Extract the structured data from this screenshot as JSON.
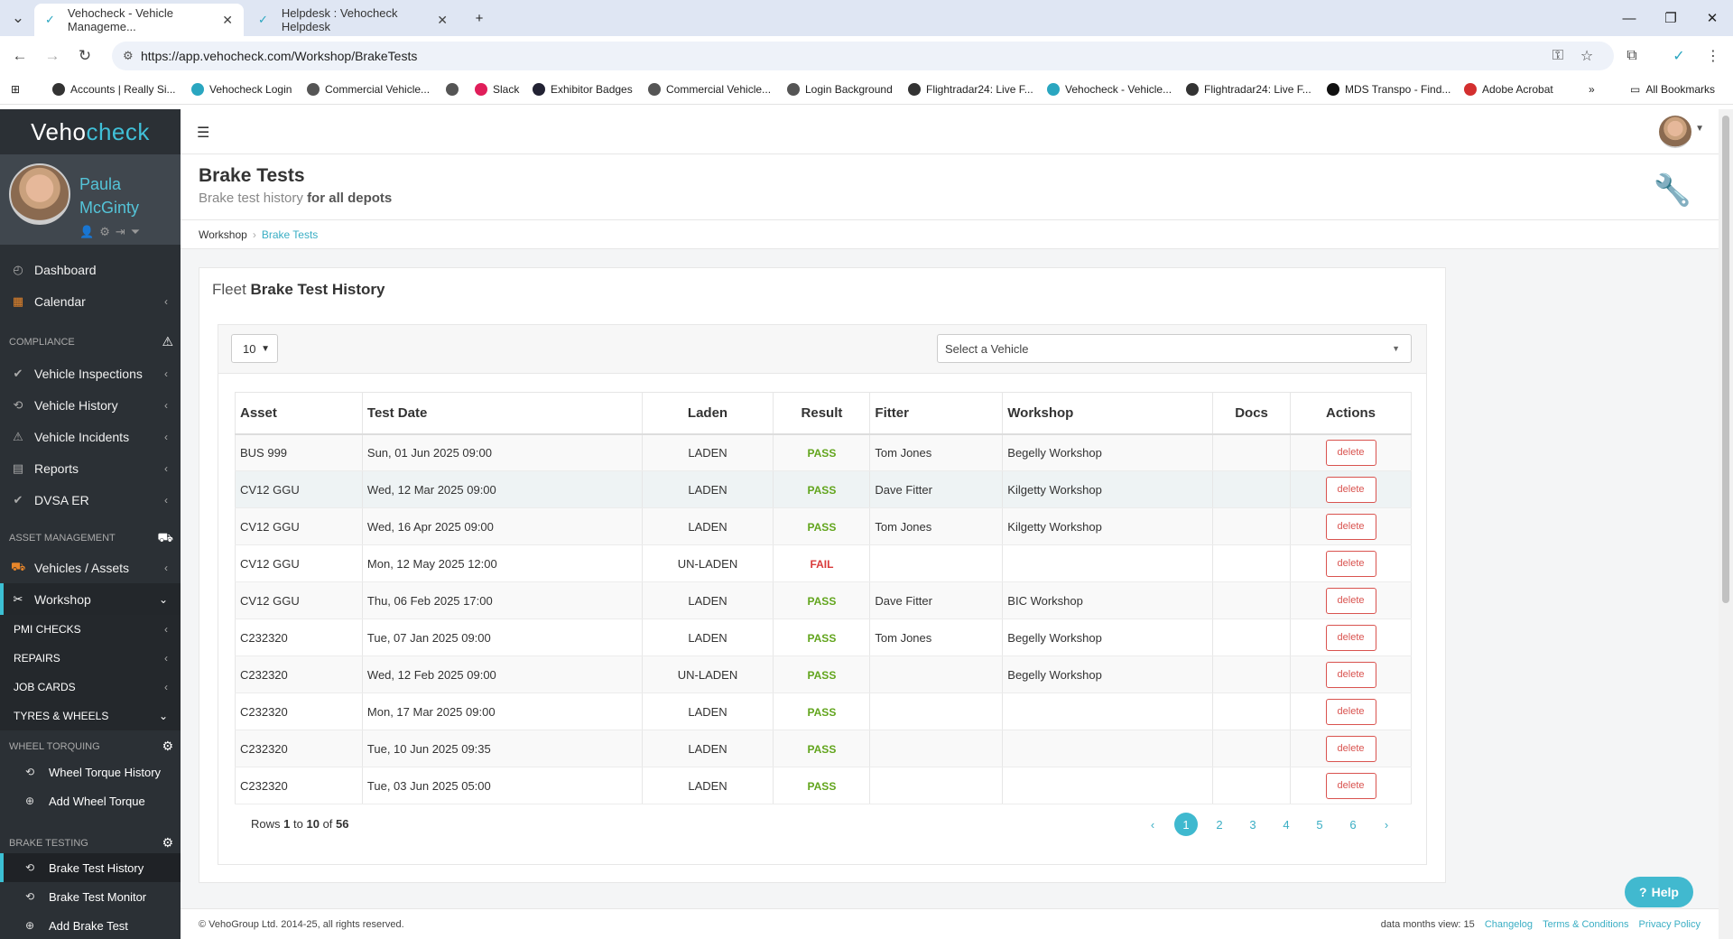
{
  "browser": {
    "tabs": [
      {
        "title": "Vehocheck - Vehicle Manageme..."
      },
      {
        "title": "Helpdesk : Vehocheck Helpdesk"
      }
    ],
    "url": "https://app.vehocheck.com/Workshop/BrakeTests",
    "bookmarks": [
      "Accounts | Really Si...",
      "Vehocheck Login",
      "Commercial Vehicle...",
      "Slack",
      "Exhibitor Badges",
      "Commercial Vehicle...",
      "Login Background",
      "Flightradar24: Live F...",
      "Vehocheck - Vehicle...",
      "Flightradar24: Live F...",
      "MDS Transpo - Find...",
      "Adobe Acrobat"
    ],
    "all_bookmarks": "All Bookmarks"
  },
  "sidebar": {
    "logo_prefix": "Veho",
    "logo_suffix": "check",
    "user_first": "Paula",
    "user_last": "McGinty",
    "dashboard": "Dashboard",
    "calendar": "Calendar",
    "compliance": "COMPLIANCE",
    "vehicle_inspections": "Vehicle Inspections",
    "vehicle_history": "Vehicle History",
    "vehicle_incidents": "Vehicle Incidents",
    "reports": "Reports",
    "dvsa_er": "DVSA ER",
    "asset_management": "ASSET MANAGEMENT",
    "vehicles_assets": "Vehicles / Assets",
    "workshop": "Workshop",
    "pmi_checks": "PMI CHECKS",
    "repairs": "REPAIRS",
    "job_cards": "JOB CARDS",
    "tyres_wheels": "TYRES & WHEELS",
    "wheel_torquing": "WHEEL TORQUING",
    "wheel_torque_history": "Wheel Torque History",
    "add_wheel_torque": "Add Wheel Torque",
    "brake_testing": "BRAKE TESTING",
    "brake_test_history": "Brake Test History",
    "brake_test_monitor": "Brake Test Monitor",
    "add_brake_test": "Add Brake Test"
  },
  "header": {
    "title": "Brake Tests",
    "subtitle_prefix": "Brake test history",
    "subtitle_bold": "for all depots"
  },
  "breadcrumb": {
    "root": "Workshop",
    "current": "Brake Tests"
  },
  "panel": {
    "title_prefix": "Fleet",
    "title_bold": "Brake Test History"
  },
  "controls": {
    "page_size": "10",
    "vehicle_placeholder": "Select a Vehicle"
  },
  "table": {
    "headers": [
      "Asset",
      "Test Date",
      "Laden",
      "Result",
      "Fitter",
      "Workshop",
      "Docs",
      "Actions"
    ],
    "rows": [
      {
        "asset": "BUS 999",
        "date": "Sun, 01 Jun 2025 09:00",
        "laden": "LADEN",
        "result": "PASS",
        "fitter": "Tom Jones",
        "workshop": "Begelly Workshop",
        "action": "delete"
      },
      {
        "asset": "CV12 GGU",
        "date": "Wed, 12 Mar 2025 09:00",
        "laden": "LADEN",
        "result": "PASS",
        "fitter": "Dave Fitter",
        "workshop": "Kilgetty Workshop",
        "action": "delete"
      },
      {
        "asset": "CV12 GGU",
        "date": "Wed, 16 Apr 2025 09:00",
        "laden": "LADEN",
        "result": "PASS",
        "fitter": "Tom Jones",
        "workshop": "Kilgetty Workshop",
        "action": "delete"
      },
      {
        "asset": "CV12 GGU",
        "date": "Mon, 12 May 2025 12:00",
        "laden": "UN-LADEN",
        "result": "FAIL",
        "fitter": "",
        "workshop": "",
        "action": "delete"
      },
      {
        "asset": "CV12 GGU",
        "date": "Thu, 06 Feb 2025 17:00",
        "laden": "LADEN",
        "result": "PASS",
        "fitter": "Dave Fitter",
        "workshop": "BIC Workshop",
        "action": "delete"
      },
      {
        "asset": "C232320",
        "date": "Tue, 07 Jan 2025 09:00",
        "laden": "LADEN",
        "result": "PASS",
        "fitter": "Tom Jones",
        "workshop": "Begelly Workshop",
        "action": "delete"
      },
      {
        "asset": "C232320",
        "date": "Wed, 12 Feb 2025 09:00",
        "laden": "UN-LADEN",
        "result": "PASS",
        "fitter": "",
        "workshop": "Begelly Workshop",
        "action": "delete"
      },
      {
        "asset": "C232320",
        "date": "Mon, 17 Mar 2025 09:00",
        "laden": "LADEN",
        "result": "PASS",
        "fitter": "",
        "workshop": "",
        "action": "delete"
      },
      {
        "asset": "C232320",
        "date": "Tue, 10 Jun 2025 09:35",
        "laden": "LADEN",
        "result": "PASS",
        "fitter": "",
        "workshop": "",
        "action": "delete"
      },
      {
        "asset": "C232320",
        "date": "Tue, 03 Jun 2025 05:00",
        "laden": "LADEN",
        "result": "PASS",
        "fitter": "",
        "workshop": "",
        "action": "delete"
      }
    ]
  },
  "pagination": {
    "rows_label": "Rows",
    "from": "1",
    "to_label": "to",
    "to": "10",
    "of_label": "of",
    "total": "56",
    "pages": [
      "1",
      "2",
      "3",
      "4",
      "5",
      "6"
    ],
    "current": "1"
  },
  "footer": {
    "copyright": "© VehoGroup Ltd. 2014-25, all rights reserved.",
    "data_months": "data months view: 15",
    "changelog": "Changelog",
    "terms": "Terms & Conditions",
    "privacy": "Privacy Policy"
  },
  "help": {
    "label": "Help"
  },
  "colors": {
    "accent": "#3fb9cf",
    "pass": "#62a51d",
    "fail": "#d93a3a",
    "sidebar": "#2b3035"
  }
}
